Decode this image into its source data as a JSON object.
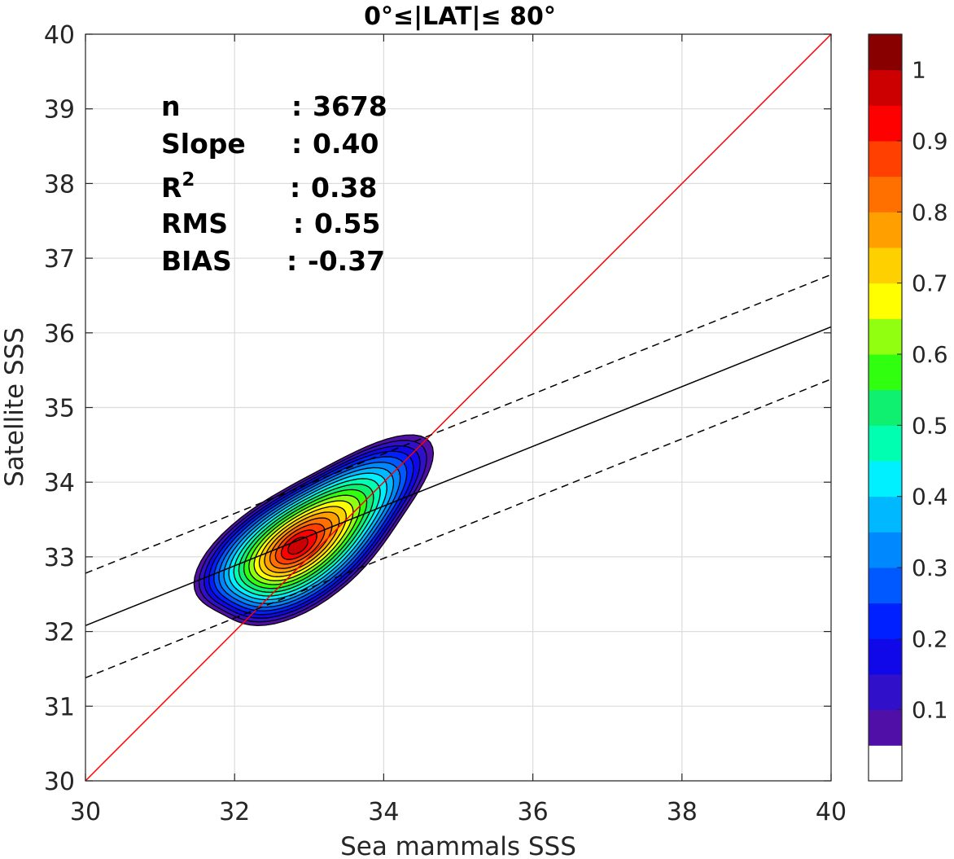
{
  "chart_data": {
    "type": "contour",
    "title": "0°≤|LAT|≤ 80°",
    "xlabel": "Sea mammals SSS",
    "ylabel": "Satellite SSS",
    "xlim": [
      30,
      40
    ],
    "ylim": [
      30,
      40
    ],
    "xticks": [
      "30",
      "32",
      "34",
      "36",
      "38",
      "40"
    ],
    "yticks": [
      "30",
      "31",
      "32",
      "33",
      "34",
      "35",
      "36",
      "37",
      "38",
      "39",
      "40"
    ],
    "grid": true,
    "stats": [
      {
        "label": "n",
        "sep": ":",
        "value": "3678"
      },
      {
        "label": "Slope",
        "sep": ":",
        "value": "0.40"
      },
      {
        "label": "R",
        "sup": "2",
        "sep": ":",
        "value": "0.38"
      },
      {
        "label": "RMS",
        "sep": ":",
        "value": "0.55"
      },
      {
        "label": "BIAS",
        "sep": ":",
        "value": "-0.37"
      }
    ],
    "reference_lines": {
      "identity": {
        "x": [
          30,
          40
        ],
        "y": [
          30,
          40
        ],
        "color": "#ff0000"
      },
      "fit": {
        "x": [
          30,
          40
        ],
        "y": [
          32.08,
          36.08
        ],
        "color": "#000000",
        "style": "solid"
      },
      "fit_upper": {
        "x": [
          30,
          40
        ],
        "y": [
          32.78,
          36.78
        ],
        "color": "#000000",
        "style": "dashed"
      },
      "fit_lower": {
        "x": [
          30,
          40
        ],
        "y": [
          31.38,
          35.38
        ],
        "color": "#000000",
        "style": "dashed"
      }
    },
    "density_peak": {
      "x": 32.85,
      "y": 33.15
    },
    "colorbar": {
      "ticks": [
        "0.1",
        "0.2",
        "0.3",
        "0.4",
        "0.5",
        "0.6",
        "0.7",
        "0.8",
        "0.9",
        "1"
      ],
      "tick_values": [
        0.1,
        0.2,
        0.3,
        0.4,
        0.5,
        0.6,
        0.7,
        0.8,
        0.9,
        1.0
      ],
      "range": [
        0,
        1
      ],
      "levels": 20,
      "colors": [
        "#ffffff",
        "#5010a8",
        "#3010c8",
        "#1008e8",
        "#0020ff",
        "#0058ff",
        "#0088ff",
        "#00b8ff",
        "#00f0ff",
        "#00ffb0",
        "#10f070",
        "#30ff10",
        "#90ff10",
        "#ffff00",
        "#ffd000",
        "#ffa000",
        "#ff7000",
        "#ff4000",
        "#ff0000",
        "#cc0000",
        "#880000"
      ]
    }
  }
}
